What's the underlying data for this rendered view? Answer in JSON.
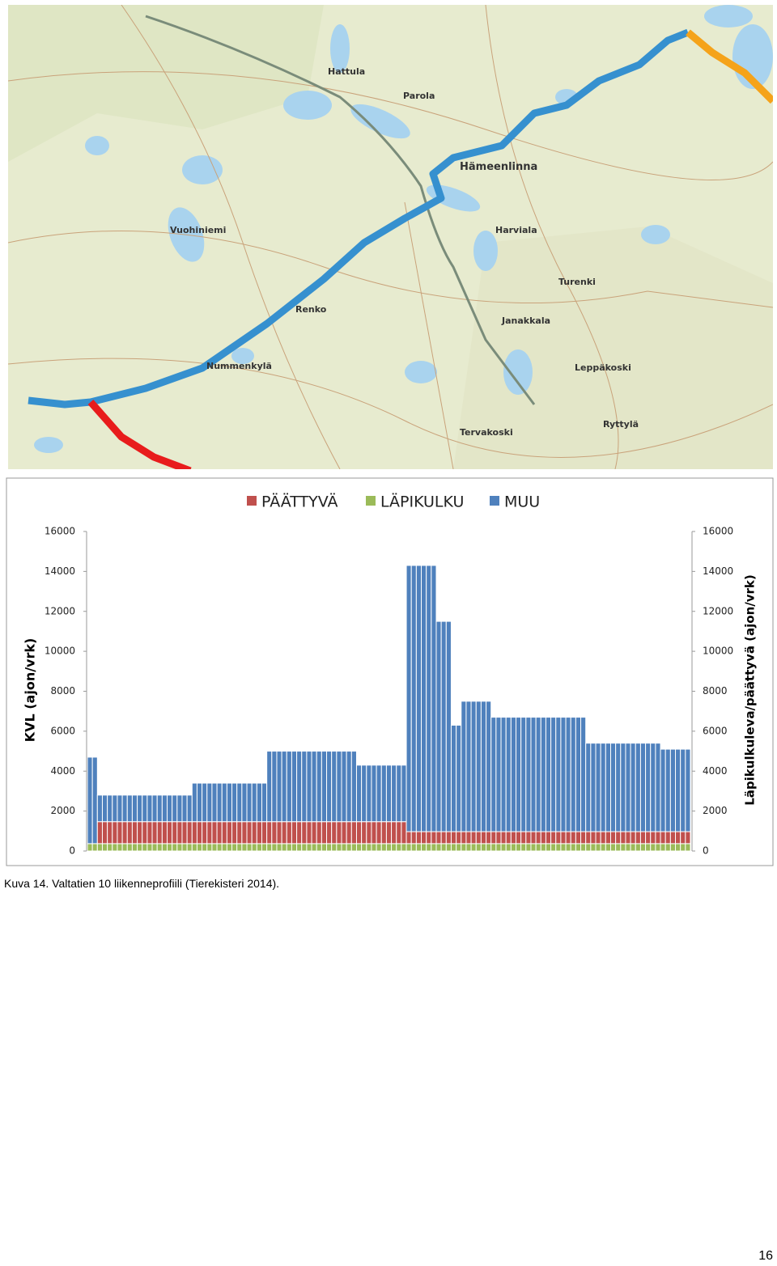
{
  "map": {
    "labels": [
      "Hämeenlinna",
      "Hattula",
      "Turenki",
      "Janakkala",
      "Tervakoski",
      "Renko",
      "Ryttylä",
      "Leppäkoski",
      "Harviala",
      "Nummenkylä",
      "Vuohiniemi",
      "Parola"
    ]
  },
  "chart_data": {
    "type": "bar",
    "stacked": true,
    "series": [
      {
        "name": "PÄÄTTYVÄ",
        "color": "#c0504d",
        "values": [
          0,
          0,
          1100,
          1100,
          1100,
          1100,
          1100,
          1100,
          1100,
          1100,
          1100,
          1100,
          1100,
          1100,
          1100,
          1100,
          1100,
          1100,
          1100,
          1100,
          1100,
          1100,
          1100,
          1100,
          1100,
          1100,
          1100,
          1100,
          1100,
          1100,
          1100,
          1100,
          1100,
          1100,
          1100,
          1100,
          1100,
          1100,
          1100,
          1100,
          1100,
          1100,
          1100,
          1100,
          1100,
          1100,
          1100,
          1100,
          1100,
          1100,
          1100,
          1100,
          1100,
          1100,
          1100,
          1100,
          1100,
          1100,
          1100,
          1100,
          1100,
          1100,
          1100,
          1100,
          600,
          600,
          600,
          600,
          600,
          600,
          600,
          600,
          600,
          600,
          600,
          600,
          600,
          600,
          600,
          600,
          600,
          600,
          600,
          600,
          600,
          600,
          600,
          600,
          600,
          600,
          600,
          600,
          600,
          600,
          600,
          600,
          600,
          600,
          600,
          600,
          600,
          600,
          600,
          600,
          600,
          600,
          600,
          600,
          600,
          600,
          600,
          600,
          600,
          600,
          600,
          600,
          600,
          600,
          600,
          600,
          600
        ]
      },
      {
        "name": "LÄPIKULKU",
        "color": "#9bbb59",
        "values": [
          370,
          370,
          370,
          370,
          370,
          370,
          370,
          370,
          370,
          370,
          370,
          370,
          370,
          370,
          370,
          370,
          370,
          370,
          370,
          370,
          370,
          370,
          370,
          370,
          370,
          370,
          370,
          370,
          370,
          370,
          370,
          370,
          370,
          370,
          370,
          370,
          370,
          370,
          370,
          370,
          370,
          370,
          370,
          370,
          370,
          370,
          370,
          370,
          370,
          370,
          370,
          370,
          370,
          370,
          370,
          370,
          370,
          370,
          370,
          370,
          370,
          370,
          370,
          370,
          370,
          370,
          370,
          370,
          370,
          370,
          370,
          370,
          370,
          370,
          370,
          370,
          370,
          370,
          370,
          370,
          370,
          370,
          370,
          370,
          370,
          370,
          370,
          370,
          370,
          370,
          370,
          370,
          370,
          370,
          370,
          370,
          370,
          370,
          370,
          370,
          370,
          370,
          370,
          370,
          370,
          370,
          370,
          370,
          370,
          370,
          370,
          370,
          370,
          370,
          370,
          370,
          370,
          370,
          370,
          370,
          370
        ]
      },
      {
        "name": "MUU",
        "color": "#4f81bd",
        "values": [
          4330,
          4330,
          1330,
          1330,
          1330,
          1330,
          1330,
          1330,
          1330,
          1330,
          1330,
          1330,
          1330,
          1330,
          1330,
          1330,
          1330,
          1330,
          1330,
          1330,
          1330,
          1930,
          1930,
          1930,
          1930,
          1930,
          1930,
          1930,
          1930,
          1930,
          1930,
          1930,
          1930,
          1930,
          1930,
          1930,
          3530,
          3530,
          3530,
          3530,
          3530,
          3530,
          3530,
          3530,
          3530,
          3530,
          3530,
          3530,
          3530,
          3530,
          3530,
          3530,
          3530,
          3530,
          2830,
          2830,
          2830,
          2830,
          2830,
          2830,
          2830,
          2830,
          2830,
          2830,
          13330,
          13330,
          13330,
          13330,
          13330,
          13330,
          10530,
          10530,
          10530,
          5330,
          5330,
          6530,
          6530,
          6530,
          6530,
          6530,
          6530,
          5730,
          5730,
          5730,
          5730,
          5730,
          5730,
          5730,
          5730,
          5730,
          5730,
          5730,
          5730,
          5730,
          5730,
          5730,
          5730,
          5730,
          5730,
          5730,
          4430,
          4430,
          4430,
          4430,
          4430,
          4430,
          4430,
          4430,
          4430,
          4430,
          4430,
          4430,
          4430,
          4430,
          4430,
          4130,
          4130,
          4130,
          4130,
          4130,
          4130
        ]
      }
    ],
    "ylabel": "KVL (ajon/vrk)",
    "y2label": "Läpikulkuleva/päättyvä (ajon/vrk)",
    "ylim": [
      0,
      16000
    ],
    "yticks": [
      0,
      2000,
      4000,
      6000,
      8000,
      10000,
      12000,
      14000,
      16000
    ],
    "y2lim": [
      0,
      16000
    ],
    "y2ticks": [
      0,
      2000,
      4000,
      6000,
      8000,
      10000,
      12000,
      14000,
      16000
    ]
  },
  "caption": "Kuva 14. Valtatien 10 liikenneprofiili (Tierekisteri 2014).",
  "page_number": "16"
}
